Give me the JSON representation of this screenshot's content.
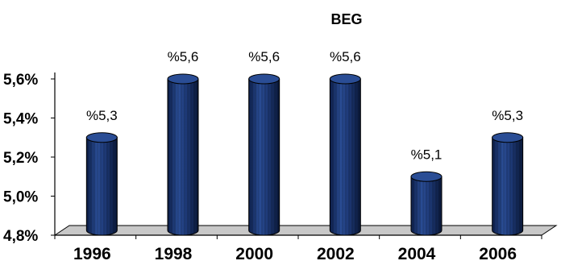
{
  "chart_data": {
    "type": "bar",
    "title": "BEG",
    "xlabel": "",
    "ylabel": "",
    "categories": [
      "1996",
      "1998",
      "2000",
      "2002",
      "2004",
      "2006"
    ],
    "series": [
      {
        "values": [
          5.3,
          5.6,
          5.6,
          5.6,
          5.1,
          5.3
        ]
      }
    ],
    "data_labels": [
      "%5,3",
      "%5,6",
      "%5,6",
      "%5,6",
      "%5,1",
      "%5,3"
    ],
    "ylim": [
      4.8,
      5.6
    ],
    "yticks": [
      4.8,
      5.0,
      5.2,
      5.4,
      5.6
    ],
    "ytick_labels": [
      "4,8%",
      "5,0%",
      "5,2%",
      "5,4%",
      "5,6%"
    ],
    "grid": false,
    "legend": "none",
    "bar_style": "3d-cylinder",
    "colors": {
      "bar": "#1e3a78",
      "bar_dark": "#0d1f4a",
      "bar_top": "#2a4d95",
      "floor": "#c8c8c8",
      "axis": "#000000"
    }
  }
}
